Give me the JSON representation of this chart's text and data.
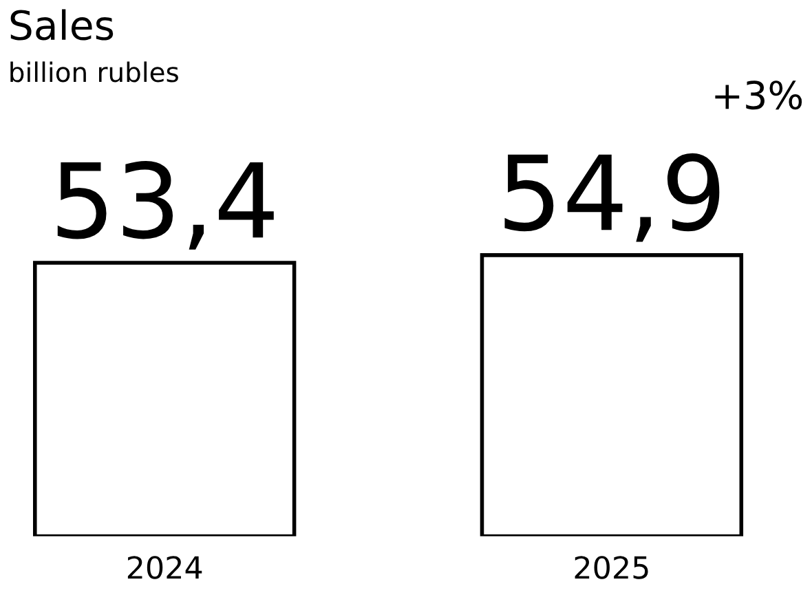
{
  "chart_data": {
    "type": "bar",
    "title": "Sales",
    "subtitle": "billion rubles",
    "categories": [
      "2024",
      "2025"
    ],
    "values": [
      53.4,
      54.9
    ],
    "value_labels": [
      "53,4",
      "54,9"
    ],
    "color": "#ffffff",
    "annotations": [
      "+3%"
    ],
    "grid": false
  }
}
